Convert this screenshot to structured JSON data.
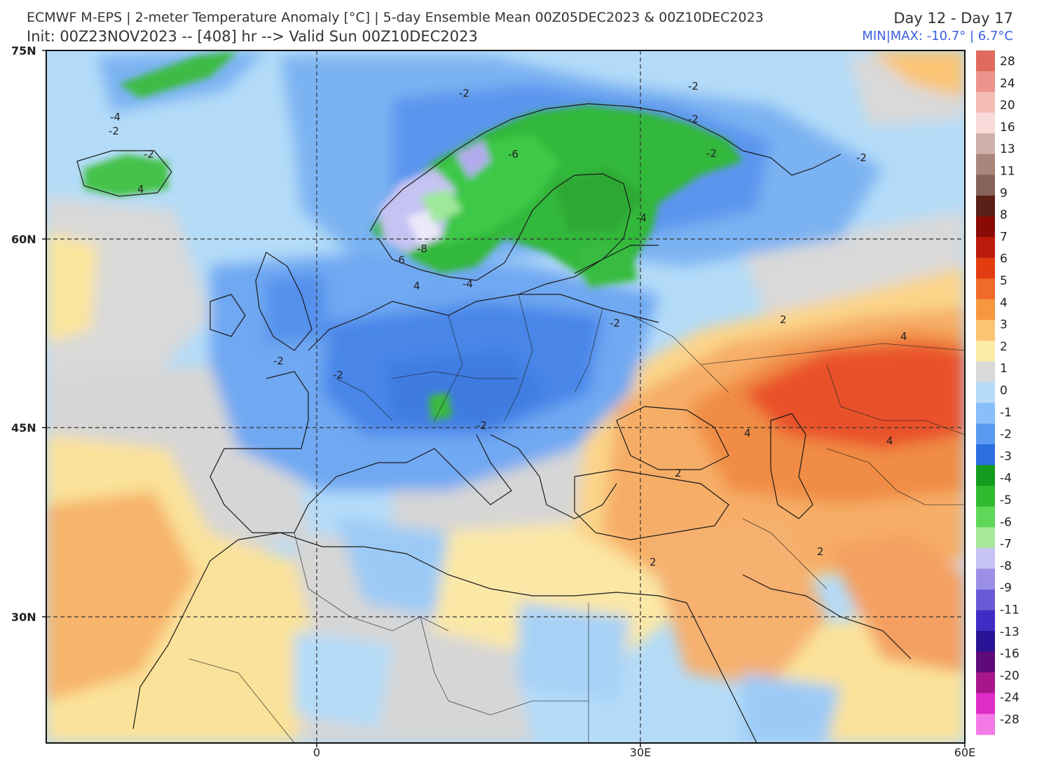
{
  "header": {
    "line1": "ECMWF M-EPS | 2-meter Temperature Anomaly [°C] | 5-day Ensemble Mean 00Z05DEC2023 & 00Z10DEC2023",
    "line2": "Init: 00Z23NOV2023 -- [408] hr --> Valid Sun 00Z10DEC2023",
    "day_range": "Day 12 - Day 17",
    "minmax": "MIN|MAX: -10.7° | 6.7°C"
  },
  "axes": {
    "lat_labels": [
      "75N",
      "60N",
      "45N",
      "30N"
    ],
    "lon_labels": [
      "0",
      "30E",
      "60E"
    ]
  },
  "colorbar": {
    "levels": [
      "28",
      "24",
      "20",
      "16",
      "13",
      "11",
      "9",
      "8",
      "7",
      "6",
      "5",
      "4",
      "3",
      "2",
      "1",
      "0",
      "-1",
      "-2",
      "-3",
      "-4",
      "-5",
      "-6",
      "-7",
      "-8",
      "-9",
      "-11",
      "-13",
      "-16",
      "-20",
      "-24",
      "-28"
    ],
    "colors": [
      "#e06a5e",
      "#ec948b",
      "#f4bcb6",
      "#f8dbd8",
      "#cfb0aa",
      "#a9857c",
      "#86625a",
      "#5a1f16",
      "#8a0b06",
      "#bb1a0c",
      "#e23c10",
      "#f06a28",
      "#f7983f",
      "#fbc574",
      "#fdeca5",
      "#d9d9d9",
      "#b7dbf8",
      "#88befa",
      "#5a9af0",
      "#2c6fe0",
      "#149a1e",
      "#2fbb2f",
      "#5fd85a",
      "#a8e89a",
      "#c7c4f4",
      "#9a8ee6",
      "#6a5ad8",
      "#3e2cc4",
      "#2a1296",
      "#5e0a7a",
      "#a8168e",
      "#de2cc6",
      "#f37ae6"
    ]
  },
  "contour_labels": [
    "-2",
    "-2",
    "-2",
    "-2",
    "-4",
    "-2",
    "-2",
    "-2",
    "4",
    "-6",
    "-6",
    "-8",
    "-4",
    "-4",
    "4",
    "-2",
    "-2",
    "-2",
    "-2",
    "2",
    "4",
    "4",
    "4",
    "2",
    "2",
    "2"
  ],
  "colors": {
    "ocean_blue": "#a9d4f6",
    "land_blue": "#6fa8f2",
    "deep_blue": "#4a86e8",
    "green": "#36c23a",
    "gray": "#d6d6d6",
    "yellow": "#fbe59c",
    "orange": "#f6aa63",
    "red": "#ef6b2e",
    "frame": "#111111",
    "minmax_text": "#3b5fe0"
  }
}
